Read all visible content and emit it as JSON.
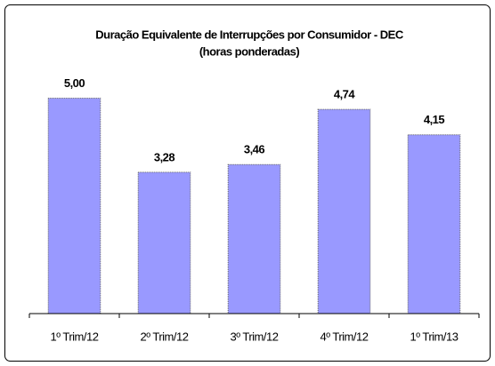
{
  "chart_data": {
    "type": "bar",
    "title": "Duração Equivalente de Interrupções por Consumidor - DEC",
    "subtitle": "(horas ponderadas)",
    "categories": [
      "1º Trim/12",
      "2º Trim/12",
      "3º Trim/12",
      "4º Trim/12",
      "1º Trim/13"
    ],
    "values": [
      5.0,
      3.28,
      3.46,
      4.74,
      4.15
    ],
    "value_labels": [
      "5,00",
      "3,28",
      "3,46",
      "4,74",
      "4,15"
    ],
    "color": "#9999ff",
    "ylim": [
      0,
      6
    ]
  }
}
